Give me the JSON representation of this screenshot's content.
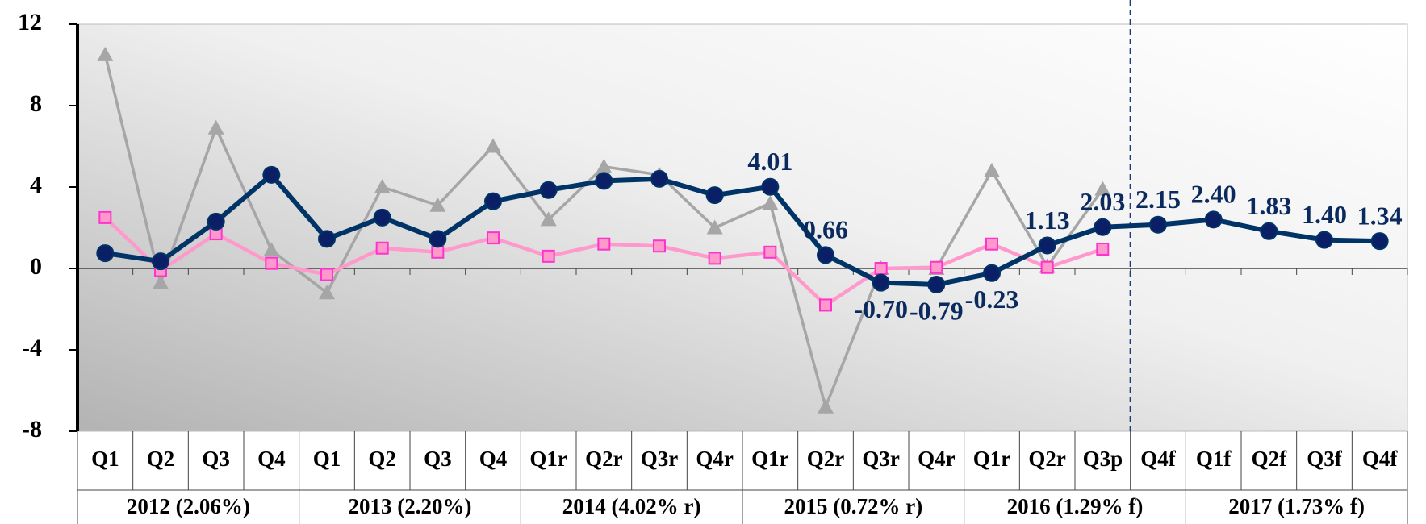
{
  "chart_data": {
    "type": "line",
    "categories": [
      "Q1",
      "Q2",
      "Q3",
      "Q4",
      "Q1",
      "Q2",
      "Q3",
      "Q4",
      "Q1r",
      "Q2r",
      "Q3r",
      "Q4r",
      "Q1r",
      "Q2r",
      "Q3r",
      "Q4r",
      "Q1r",
      "Q2r",
      "Q3p",
      "Q4f",
      "Q1f",
      "Q2f",
      "Q3f",
      "Q4f"
    ],
    "year_groups": [
      "2012 (2.06%)",
      "2013 (2.20%)",
      "2014 (4.02% r)",
      "2015 (0.72% r)",
      "2016 (1.29% f)",
      "2017 (1.73% f)"
    ],
    "ylim": [
      -8,
      12
    ],
    "yticks": [
      -8,
      -4,
      0,
      4,
      8,
      12
    ],
    "series": [
      {
        "color": "#a6a6a6",
        "marker": "triangle",
        "values": [
          10.5,
          -0.7,
          6.9,
          0.9,
          -1.2,
          4.0,
          3.1,
          6.0,
          2.4,
          5.0,
          4.6,
          2.0,
          3.2,
          -6.8,
          0.0,
          0.0,
          4.8,
          0.1,
          3.9,
          null,
          null,
          null,
          null,
          null
        ]
      },
      {
        "color": "#ff99cc",
        "marker": "square",
        "values": [
          2.5,
          -0.1,
          1.7,
          0.25,
          -0.3,
          1.0,
          0.8,
          1.5,
          0.6,
          1.2,
          1.1,
          0.5,
          0.8,
          -1.8,
          0.0,
          0.05,
          1.2,
          0.05,
          0.95,
          null,
          null,
          null,
          null,
          null
        ]
      },
      {
        "color": "#003366",
        "marker": "circle",
        "values": [
          0.75,
          0.35,
          2.3,
          4.6,
          1.45,
          2.5,
          1.45,
          3.3,
          3.85,
          4.3,
          4.4,
          3.6,
          4.01,
          0.66,
          -0.7,
          -0.79,
          -0.23,
          1.13,
          2.03,
          2.15,
          2.4,
          1.83,
          1.4,
          1.34
        ],
        "value_labels": [
          null,
          null,
          null,
          null,
          null,
          null,
          null,
          null,
          null,
          null,
          null,
          null,
          "4.01",
          "0.66",
          "-0.70",
          "-0.79",
          "-0.23",
          "1.13",
          "2.03",
          "2.15",
          "2.40",
          "1.83",
          "1.40",
          "1.34"
        ]
      }
    ]
  }
}
